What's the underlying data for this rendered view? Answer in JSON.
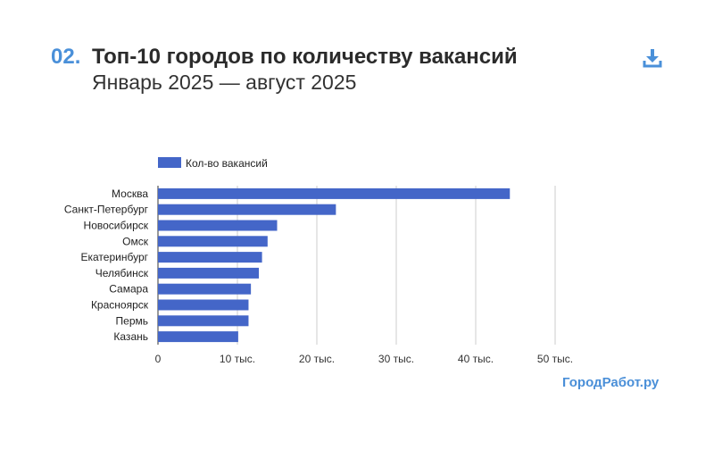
{
  "header": {
    "number": "02.",
    "title": "Топ-10 городов по количеству вакансий",
    "subtitle": "Январь 2025 — август 2025"
  },
  "toolbar": {
    "download_icon": "download-icon"
  },
  "brand": "ГородРабот.ру",
  "colors": {
    "bar": "#4466c8",
    "accent": "#4a90d9",
    "grid": "#cccccc"
  },
  "chart_data": {
    "type": "bar",
    "orientation": "horizontal",
    "categories": [
      "Москва",
      "Санкт-Петербург",
      "Новосибирск",
      "Омск",
      "Екатеринбург",
      "Челябинск",
      "Самара",
      "Красноярск",
      "Пермь",
      "Казань"
    ],
    "series": [
      {
        "name": "Кол-во вакансий",
        "values": [
          44300,
          22400,
          15000,
          13800,
          13100,
          12700,
          11700,
          11400,
          11400,
          10100
        ]
      }
    ],
    "xlim": [
      0,
      50000
    ],
    "xticks": [
      0,
      10000,
      20000,
      30000,
      40000,
      50000
    ],
    "xtick_labels": [
      "0",
      "10 тыс.",
      "20 тыс.",
      "30 тыс.",
      "40 тыс.",
      "50 тыс."
    ],
    "grid": true,
    "legend_position": "top-left"
  }
}
